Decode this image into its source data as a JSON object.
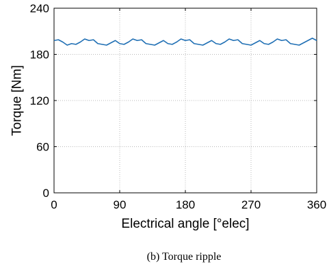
{
  "chart_data": {
    "type": "line",
    "xlabel": "Electrical angle [°elec]",
    "ylabel": "Torque [Nm]",
    "xlim": [
      0,
      360
    ],
    "ylim": [
      0,
      240
    ],
    "xticks": [
      0,
      90,
      180,
      270,
      360
    ],
    "yticks": [
      0,
      60,
      120,
      180,
      240
    ],
    "grid": true,
    "series": [
      {
        "color": "#1f6fb4",
        "x": [
          0,
          6,
          12,
          18,
          24,
          30,
          36,
          42,
          48,
          54,
          60,
          66,
          72,
          78,
          84,
          90,
          96,
          102,
          108,
          114,
          120,
          126,
          132,
          138,
          144,
          150,
          156,
          162,
          168,
          174,
          180,
          186,
          192,
          198,
          204,
          210,
          216,
          222,
          228,
          234,
          240,
          246,
          252,
          258,
          264,
          270,
          276,
          282,
          288,
          294,
          300,
          306,
          312,
          318,
          324,
          330,
          336,
          342,
          348,
          354,
          360
        ],
        "y": [
          198,
          199,
          196,
          192,
          194,
          193,
          196,
          200,
          198,
          199,
          194,
          193,
          192,
          195,
          198,
          194,
          193,
          196,
          200,
          198,
          199,
          194,
          193,
          192,
          195,
          198,
          194,
          193,
          196,
          200,
          198,
          199,
          194,
          193,
          192,
          195,
          198,
          194,
          193,
          196,
          200,
          198,
          199,
          194,
          193,
          192,
          195,
          198,
          194,
          193,
          196,
          200,
          198,
          199,
          194,
          193,
          192,
          195,
          198,
          201,
          198
        ]
      }
    ]
  },
  "caption": "(b) Torque ripple"
}
